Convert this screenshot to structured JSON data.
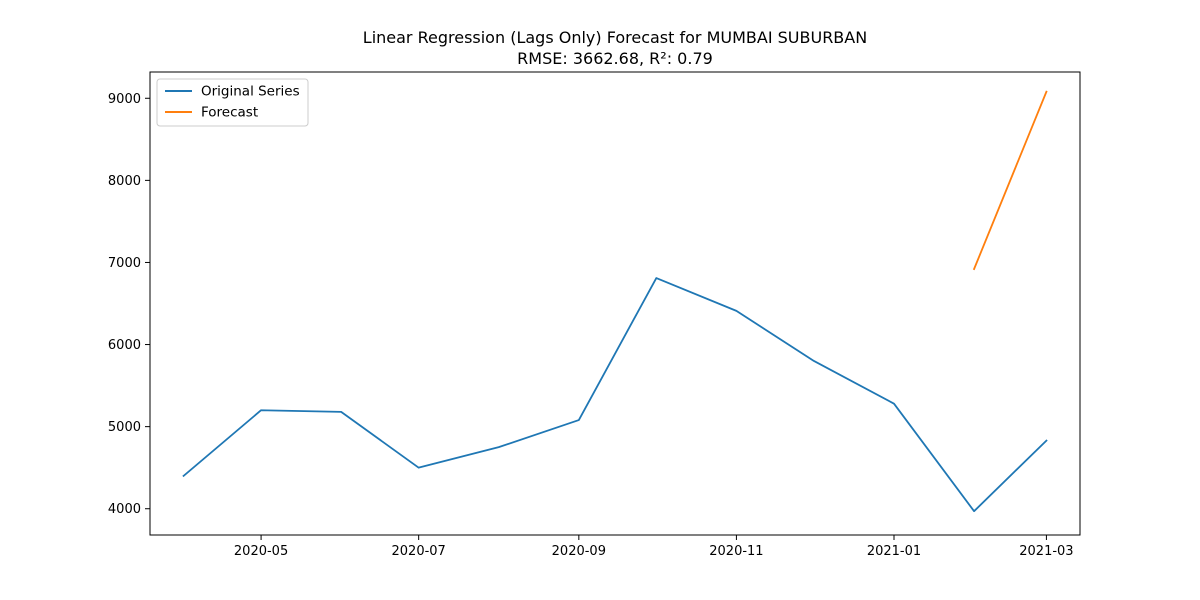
{
  "chart_data": {
    "type": "line",
    "title": "Linear Regression (Lags Only) Forecast for MUMBAI SUBURBAN",
    "subtitle": "RMSE: 3662.68, R²: 0.79",
    "xlabel": "",
    "ylabel": "",
    "x_ticks": [
      "2020-05",
      "2020-07",
      "2020-09",
      "2020-11",
      "2021-01",
      "2021-03"
    ],
    "x_ticks_dates": [
      "2020-05-01",
      "2020-07-01",
      "2020-09-01",
      "2020-11-01",
      "2021-01-01",
      "2021-03-01"
    ],
    "y_ticks": [
      4000,
      5000,
      6000,
      7000,
      8000,
      9000
    ],
    "xlim": [
      "2020-03-19",
      "2021-03-14"
    ],
    "ylim": [
      3680,
      9320
    ],
    "grid": false,
    "legend_position": "top-left",
    "series": [
      {
        "name": "Original Series",
        "color": "#1f77b4",
        "points": [
          {
            "x": "2020-04-01",
            "y": 4400
          },
          {
            "x": "2020-05-01",
            "y": 5200
          },
          {
            "x": "2020-06-01",
            "y": 5180
          },
          {
            "x": "2020-07-01",
            "y": 4500
          },
          {
            "x": "2020-08-01",
            "y": 4750
          },
          {
            "x": "2020-09-01",
            "y": 5080
          },
          {
            "x": "2020-10-01",
            "y": 6810
          },
          {
            "x": "2020-11-01",
            "y": 6410
          },
          {
            "x": "2020-12-01",
            "y": 5800
          },
          {
            "x": "2021-01-01",
            "y": 5280
          },
          {
            "x": "2021-02-01",
            "y": 3970
          },
          {
            "x": "2021-03-01",
            "y": 4830
          }
        ]
      },
      {
        "name": "Forecast",
        "color": "#ff7f0e",
        "points": [
          {
            "x": "2021-02-01",
            "y": 6920
          },
          {
            "x": "2021-03-01",
            "y": 9080
          }
        ]
      }
    ]
  }
}
